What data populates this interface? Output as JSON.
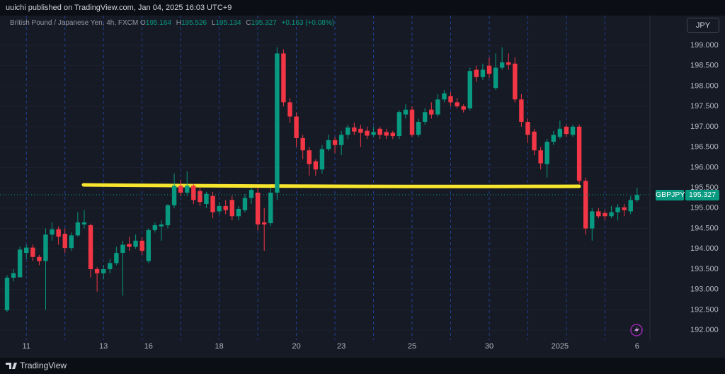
{
  "header": {
    "text": "uuichi published on TradingView.com, Jan 04, 2025 16:03 UTC+9"
  },
  "legend": {
    "instrument": "British Pound / Japanese Yen, 4h, FXCM",
    "o_label": "O",
    "o": "195.164",
    "h_label": "H",
    "h": "195.526",
    "l_label": "L",
    "l": "195.134",
    "c_label": "C",
    "c": "195.327",
    "change": "+0.163 (+0.08%)"
  },
  "currency_button": "JPY",
  "last_price": {
    "symbol": "GBPJPY",
    "value": "195.327"
  },
  "footer": {
    "brand": "TradingView"
  },
  "chart_data": {
    "type": "candlestick",
    "up_color": "#089981",
    "down_color": "#f23645",
    "grid": true,
    "categories": [
      null,
      null,
      null,
      "11",
      null,
      null,
      null,
      null,
      null,
      null,
      null,
      null,
      null,
      null,
      null,
      "13",
      null,
      null,
      null,
      null,
      null,
      null,
      "16",
      null,
      null,
      null,
      null,
      null,
      null,
      null,
      null,
      null,
      null,
      "18",
      null,
      null,
      null,
      null,
      null,
      null,
      null,
      null,
      null,
      null,
      null,
      "20",
      null,
      null,
      null,
      null,
      null,
      null,
      "23",
      null,
      null,
      null,
      null,
      null,
      null,
      null,
      null,
      null,
      null,
      "25",
      null,
      null,
      null,
      null,
      null,
      null,
      null,
      null,
      null,
      null,
      null,
      "30",
      null,
      null,
      null,
      null,
      null,
      null,
      null,
      null,
      null,
      null,
      "2025",
      null,
      null,
      null,
      null,
      null,
      null,
      null,
      null,
      null,
      null,
      null,
      "6"
    ],
    "open": [
      192.49,
      193.29,
      193.3,
      193.9,
      194.03,
      193.8,
      193.7,
      194.35,
      194.48,
      194.37,
      194.02,
      194.33,
      194.6,
      194.58,
      193.5,
      193.4,
      193.5,
      193.65,
      193.9,
      194.12,
      194.05,
      194.2,
      193.7,
      194.46,
      194.55,
      194.58,
      195.07,
      195.55,
      195.38,
      195.55,
      195.42,
      195.1,
      195.3,
      194.92,
      195.05,
      195.2,
      194.8,
      194.95,
      195.25,
      195.38,
      194.65,
      194.63,
      195.38,
      198.8,
      197.6,
      197.25,
      196.72,
      196.42,
      196.15,
      195.95,
      196.45,
      196.67,
      196.55,
      196.8,
      196.98,
      196.95,
      196.9,
      196.8,
      196.95,
      196.87,
      196.85,
      196.77,
      197.3,
      197.42,
      196.8,
      197.12,
      197.42,
      197.3,
      197.67,
      197.75,
      197.6,
      197.5,
      197.45,
      198.4,
      198.22,
      198.5,
      197.95,
      198.45,
      198.58,
      198.55,
      197.67,
      197.12,
      196.88,
      196.42,
      196.08,
      196.63,
      196.75,
      197.0,
      196.8,
      197.0,
      195.67,
      194.5,
      194.92,
      194.88,
      194.8,
      194.9,
      195.02,
      194.92,
      195.2
    ],
    "high": [
      193.35,
      193.5,
      194.05,
      194.1,
      194.1,
      193.85,
      194.5,
      194.65,
      194.55,
      194.5,
      194.4,
      194.9,
      194.96,
      194.62,
      193.55,
      193.6,
      193.75,
      194.05,
      194.2,
      194.3,
      194.35,
      194.28,
      194.5,
      194.65,
      194.7,
      195.1,
      195.85,
      195.7,
      195.9,
      195.6,
      195.5,
      195.4,
      195.4,
      195.15,
      195.2,
      195.3,
      195.05,
      195.35,
      195.5,
      195.5,
      195.0,
      195.5,
      198.95,
      198.9,
      197.7,
      197.35,
      196.8,
      196.5,
      196.2,
      196.55,
      196.8,
      196.75,
      196.9,
      197.05,
      197.1,
      197.05,
      197.0,
      197.0,
      197.0,
      196.95,
      196.9,
      197.4,
      197.55,
      197.5,
      197.2,
      197.45,
      197.6,
      197.8,
      197.9,
      197.85,
      197.7,
      197.55,
      198.45,
      198.5,
      198.55,
      198.7,
      198.8,
      198.95,
      198.8,
      198.7,
      197.8,
      197.2,
      196.95,
      196.5,
      196.7,
      196.9,
      197.15,
      197.05,
      197.05,
      197.05,
      195.75,
      195.0,
      195.0,
      194.95,
      195.05,
      195.1,
      195.1,
      195.3,
      195.5
    ],
    "low": [
      192.45,
      193.2,
      193.3,
      193.75,
      193.7,
      193.6,
      192.5,
      194.2,
      194.1,
      193.9,
      193.95,
      194.3,
      194.5,
      193.3,
      192.95,
      193.25,
      193.4,
      193.6,
      192.85,
      193.95,
      194.0,
      193.85,
      193.65,
      194.4,
      194.2,
      194.5,
      195.0,
      195.3,
      195.3,
      195.1,
      195.05,
      195.0,
      194.75,
      194.85,
      194.85,
      194.7,
      194.7,
      194.9,
      195.1,
      194.45,
      193.95,
      194.55,
      195.2,
      197.5,
      197.1,
      196.5,
      196.2,
      195.8,
      195.8,
      195.85,
      196.4,
      196.35,
      196.3,
      196.7,
      196.8,
      196.5,
      196.7,
      196.75,
      196.7,
      196.7,
      196.7,
      196.7,
      197.2,
      196.75,
      196.75,
      197.05,
      197.2,
      197.25,
      197.6,
      197.5,
      197.45,
      197.35,
      197.4,
      198.1,
      198.15,
      198.2,
      197.9,
      198.4,
      198.4,
      197.6,
      197.0,
      196.6,
      196.3,
      195.95,
      195.75,
      196.55,
      196.7,
      196.75,
      196.75,
      195.6,
      194.35,
      194.2,
      194.75,
      194.7,
      194.75,
      194.7,
      194.8,
      194.85,
      195.15
    ],
    "close": [
      193.29,
      193.4,
      193.98,
      194.03,
      193.8,
      193.7,
      194.35,
      194.48,
      194.3,
      194.02,
      194.33,
      194.65,
      194.65,
      193.5,
      193.4,
      193.5,
      193.65,
      193.9,
      194.1,
      194.05,
      194.2,
      193.95,
      194.46,
      194.58,
      194.6,
      195.07,
      195.55,
      195.38,
      195.55,
      195.2,
      195.15,
      195.35,
      194.9,
      195.05,
      194.95,
      194.8,
      194.98,
      195.25,
      195.45,
      194.6,
      194.6,
      195.38,
      198.8,
      197.6,
      197.25,
      196.72,
      196.42,
      196.08,
      195.95,
      196.45,
      196.67,
      196.55,
      196.8,
      196.98,
      196.88,
      196.85,
      196.78,
      196.87,
      196.8,
      196.78,
      196.77,
      197.36,
      197.42,
      196.8,
      197.12,
      197.36,
      197.3,
      197.67,
      197.82,
      197.6,
      197.5,
      197.42,
      198.37,
      198.22,
      198.4,
      198.3,
      198.45,
      198.58,
      198.52,
      197.67,
      197.12,
      196.8,
      196.42,
      196.1,
      196.63,
      196.8,
      196.95,
      196.82,
      197.0,
      195.67,
      194.5,
      194.92,
      194.8,
      194.8,
      194.9,
      195.02,
      194.95,
      195.2,
      195.327
    ],
    "ylim": [
      191.76,
      199.73
    ],
    "yticks": [
      {
        "value": 192,
        "label": "192.000"
      },
      {
        "value": 192.5,
        "label": "192.500"
      },
      {
        "value": 193,
        "label": "193.000"
      },
      {
        "value": 193.5,
        "label": "193.500"
      },
      {
        "value": 194,
        "label": "194.000"
      },
      {
        "value": 194.5,
        "label": "194.500"
      },
      {
        "value": 195,
        "label": "195.000"
      },
      {
        "value": 195.5,
        "label": "195.500"
      },
      {
        "value": 196,
        "label": "196.000"
      },
      {
        "value": 196.5,
        "label": "196.500"
      },
      {
        "value": 197,
        "label": "197.000"
      },
      {
        "value": 197.5,
        "label": "197.500"
      },
      {
        "value": 198,
        "label": "198.000"
      },
      {
        "value": 198.5,
        "label": "198.500"
      },
      {
        "value": 199,
        "label": "199.000"
      }
    ]
  }
}
